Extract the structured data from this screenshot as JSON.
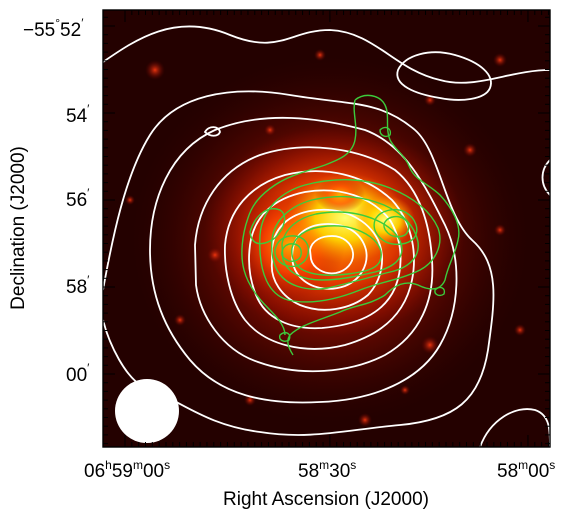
{
  "figure": {
    "xlabel": "Right Ascension (J2000)",
    "ylabel": "Declination (J2000)",
    "x_ticks": [
      {
        "hh": "06",
        "mm": "59",
        "ss": "00"
      },
      {
        "mm": "58",
        "ss": "30"
      },
      {
        "mm": "58",
        "ss": "00"
      }
    ],
    "y_ticks": [
      {
        "deg": "−55",
        "min": "52"
      },
      {
        "min": "54"
      },
      {
        "min": "56"
      },
      {
        "min": "58"
      },
      {
        "min": "00"
      }
    ],
    "units": {
      "h": "h",
      "m": "m",
      "s": "s",
      "deg": "°",
      "arcmin": "′"
    },
    "colors": {
      "frame": "#000000",
      "image_bg": "#1a0000",
      "emission_core": "#ffff40",
      "radio_contours": "#ffffff",
      "xray_contours": "#33cc33",
      "beam": "#ffffff"
    },
    "image": {
      "description_colormap": "red-yellow heat",
      "layers": [
        "emission-image",
        "radio-contours",
        "xray-contours",
        "beam-ellipse"
      ]
    }
  }
}
